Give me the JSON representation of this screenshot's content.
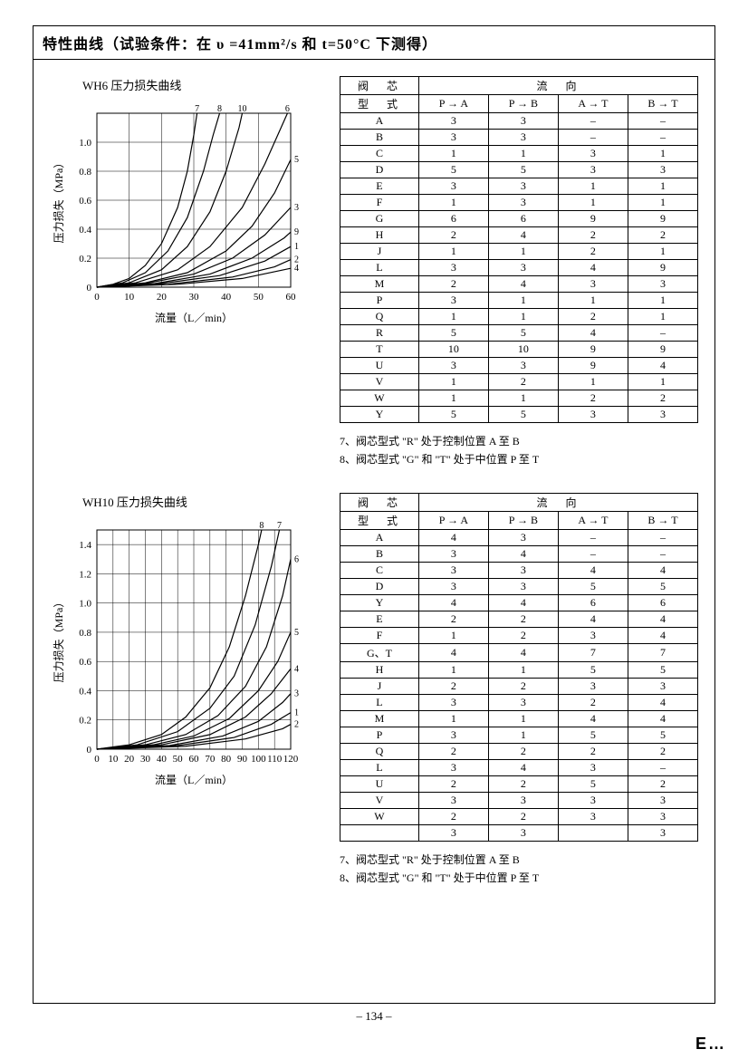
{
  "page_number": "– 134 –",
  "corner": "E…",
  "title": "特性曲线（试验条件：在 υ =41mm²/s 和 t=50°C 下测得）",
  "chart1": {
    "title": "WH6 压力损失曲线",
    "ylabel": "压力损失（MPa）",
    "xlabel": "流量（L／min）",
    "xlim": [
      0,
      60
    ],
    "xticks": [
      0,
      10,
      20,
      30,
      40,
      50,
      60
    ],
    "ylim": [
      0,
      1.2
    ],
    "yticks": [
      0,
      0.2,
      0.4,
      0.6,
      0.8,
      1.0
    ],
    "grid_color": "#000",
    "line_color": "#000",
    "line_width": 1.2,
    "end_labels": [
      "7",
      "8",
      "10",
      "6",
      "5",
      "3",
      "9",
      "1",
      "2",
      "4"
    ],
    "curves": [
      [
        [
          0,
          0
        ],
        [
          5,
          0.02
        ],
        [
          10,
          0.06
        ],
        [
          15,
          0.15
        ],
        [
          20,
          0.3
        ],
        [
          25,
          0.55
        ],
        [
          28,
          0.8
        ],
        [
          30,
          1.05
        ],
        [
          31,
          1.2
        ]
      ],
      [
        [
          0,
          0
        ],
        [
          8,
          0.03
        ],
        [
          15,
          0.1
        ],
        [
          22,
          0.25
        ],
        [
          28,
          0.48
        ],
        [
          33,
          0.8
        ],
        [
          36,
          1.05
        ],
        [
          38,
          1.2
        ]
      ],
      [
        [
          0,
          0
        ],
        [
          10,
          0.03
        ],
        [
          20,
          0.12
        ],
        [
          28,
          0.28
        ],
        [
          35,
          0.52
        ],
        [
          40,
          0.8
        ],
        [
          44,
          1.1
        ],
        [
          45,
          1.2
        ]
      ],
      [
        [
          0,
          0
        ],
        [
          12,
          0.03
        ],
        [
          25,
          0.12
        ],
        [
          35,
          0.28
        ],
        [
          45,
          0.55
        ],
        [
          52,
          0.85
        ],
        [
          58,
          1.15
        ],
        [
          59,
          1.2
        ]
      ],
      [
        [
          0,
          0
        ],
        [
          15,
          0.03
        ],
        [
          28,
          0.1
        ],
        [
          40,
          0.25
        ],
        [
          48,
          0.42
        ],
        [
          55,
          0.65
        ],
        [
          60,
          0.88
        ]
      ],
      [
        [
          0,
          0
        ],
        [
          15,
          0.025
        ],
        [
          30,
          0.09
        ],
        [
          42,
          0.2
        ],
        [
          52,
          0.36
        ],
        [
          60,
          0.55
        ]
      ],
      [
        [
          0,
          0
        ],
        [
          18,
          0.025
        ],
        [
          35,
          0.09
        ],
        [
          48,
          0.2
        ],
        [
          58,
          0.34
        ],
        [
          60,
          0.38
        ]
      ],
      [
        [
          0,
          0
        ],
        [
          20,
          0.025
        ],
        [
          38,
          0.08
        ],
        [
          52,
          0.18
        ],
        [
          60,
          0.28
        ]
      ],
      [
        [
          0,
          0
        ],
        [
          22,
          0.02
        ],
        [
          42,
          0.07
        ],
        [
          55,
          0.14
        ],
        [
          60,
          0.19
        ]
      ],
      [
        [
          0,
          0
        ],
        [
          25,
          0.02
        ],
        [
          45,
          0.06
        ],
        [
          60,
          0.13
        ]
      ]
    ]
  },
  "chart2": {
    "title": "WH10 压力损失曲线",
    "ylabel": "压力损失（MPa）",
    "xlabel": "流量（L／min）",
    "xlim": [
      0,
      120
    ],
    "xticks": [
      0,
      10,
      20,
      30,
      40,
      50,
      60,
      70,
      80,
      90,
      100,
      110,
      120
    ],
    "ylim": [
      0,
      1.5
    ],
    "yticks": [
      0,
      0.2,
      0.4,
      0.6,
      0.8,
      1.0,
      1.2,
      1.4
    ],
    "grid_color": "#000",
    "line_color": "#000",
    "line_width": 1.2,
    "end_labels": [
      "8",
      "7",
      "6",
      "5",
      "4",
      "3",
      "1",
      "2"
    ],
    "curves": [
      [
        [
          0,
          0
        ],
        [
          20,
          0.03
        ],
        [
          40,
          0.1
        ],
        [
          55,
          0.22
        ],
        [
          70,
          0.42
        ],
        [
          82,
          0.7
        ],
        [
          92,
          1.05
        ],
        [
          100,
          1.4
        ],
        [
          102,
          1.5
        ]
      ],
      [
        [
          0,
          0
        ],
        [
          25,
          0.03
        ],
        [
          50,
          0.12
        ],
        [
          70,
          0.28
        ],
        [
          85,
          0.5
        ],
        [
          98,
          0.85
        ],
        [
          108,
          1.25
        ],
        [
          113,
          1.5
        ]
      ],
      [
        [
          0,
          0
        ],
        [
          30,
          0.03
        ],
        [
          55,
          0.1
        ],
        [
          75,
          0.23
        ],
        [
          92,
          0.43
        ],
        [
          105,
          0.7
        ],
        [
          115,
          1.05
        ],
        [
          120,
          1.3
        ]
      ],
      [
        [
          0,
          0
        ],
        [
          35,
          0.03
        ],
        [
          60,
          0.09
        ],
        [
          82,
          0.21
        ],
        [
          100,
          0.4
        ],
        [
          112,
          0.6
        ],
        [
          120,
          0.8
        ]
      ],
      [
        [
          0,
          0
        ],
        [
          40,
          0.03
        ],
        [
          70,
          0.1
        ],
        [
          92,
          0.22
        ],
        [
          108,
          0.38
        ],
        [
          120,
          0.55
        ]
      ],
      [
        [
          0,
          0
        ],
        [
          45,
          0.025
        ],
        [
          78,
          0.09
        ],
        [
          100,
          0.19
        ],
        [
          115,
          0.32
        ],
        [
          120,
          0.38
        ]
      ],
      [
        [
          0,
          0
        ],
        [
          50,
          0.025
        ],
        [
          85,
          0.08
        ],
        [
          108,
          0.17
        ],
        [
          120,
          0.25
        ]
      ],
      [
        [
          0,
          0
        ],
        [
          55,
          0.02
        ],
        [
          92,
          0.07
        ],
        [
          115,
          0.14
        ],
        [
          120,
          0.17
        ]
      ]
    ]
  },
  "table1": {
    "header_main": "阀　芯",
    "header_sub": "型　式",
    "header_flow": "流　向",
    "cols": [
      "P → A",
      "P → B",
      "A → T",
      "B → T"
    ],
    "rows": [
      [
        "A",
        "3",
        "3",
        "–",
        "–"
      ],
      [
        "B",
        "3",
        "3",
        "–",
        "–"
      ],
      [
        "C",
        "1",
        "1",
        "3",
        "1"
      ],
      [
        "D",
        "5",
        "5",
        "3",
        "3"
      ],
      [
        "E",
        "3",
        "3",
        "1",
        "1"
      ],
      [
        "F",
        "1",
        "3",
        "1",
        "1"
      ],
      [
        "G",
        "6",
        "6",
        "9",
        "9"
      ],
      [
        "H",
        "2",
        "4",
        "2",
        "2"
      ],
      [
        "J",
        "1",
        "1",
        "2",
        "1"
      ],
      [
        "L",
        "3",
        "3",
        "4",
        "9"
      ],
      [
        "M",
        "2",
        "4",
        "3",
        "3"
      ],
      [
        "P",
        "3",
        "1",
        "1",
        "1"
      ],
      [
        "Q",
        "1",
        "1",
        "2",
        "1"
      ],
      [
        "R",
        "5",
        "5",
        "4",
        "–"
      ],
      [
        "T",
        "10",
        "10",
        "9",
        "9"
      ],
      [
        "U",
        "3",
        "3",
        "9",
        "4"
      ],
      [
        "V",
        "1",
        "2",
        "1",
        "1"
      ],
      [
        "W",
        "1",
        "1",
        "2",
        "2"
      ],
      [
        "Y",
        "5",
        "5",
        "3",
        "3"
      ]
    ]
  },
  "table2": {
    "header_main": "阀　芯",
    "header_sub": "型　式",
    "header_flow": "流　向",
    "cols": [
      "P → A",
      "P → B",
      "A → T",
      "B → T"
    ],
    "rows": [
      [
        "A",
        "4",
        "3",
        "–",
        "–"
      ],
      [
        "B",
        "3",
        "4",
        "–",
        "–"
      ],
      [
        "C",
        "3",
        "3",
        "4",
        "4"
      ],
      [
        "D",
        "3",
        "3",
        "5",
        "5"
      ],
      [
        "Y",
        "4",
        "4",
        "6",
        "6"
      ],
      [
        "E",
        "2",
        "2",
        "4",
        "4"
      ],
      [
        "F",
        "1",
        "2",
        "3",
        "4"
      ],
      [
        "G、T",
        "4",
        "4",
        "7",
        "7"
      ],
      [
        "H",
        "1",
        "1",
        "5",
        "5"
      ],
      [
        "J",
        "2",
        "2",
        "3",
        "3"
      ],
      [
        "L",
        "3",
        "3",
        "2",
        "4"
      ],
      [
        "M",
        "1",
        "1",
        "4",
        "4"
      ],
      [
        "P",
        "3",
        "1",
        "5",
        "5"
      ],
      [
        "Q",
        "2",
        "2",
        "2",
        "2"
      ],
      [
        "L",
        "3",
        "4",
        "3",
        "–"
      ],
      [
        "U",
        "2",
        "2",
        "5",
        "2"
      ],
      [
        "V",
        "3",
        "3",
        "3",
        "3"
      ],
      [
        "W",
        "2",
        "2",
        "3",
        "3"
      ],
      [
        "",
        "3",
        "3",
        "",
        "3"
      ]
    ]
  },
  "notes1": [
    "7、阀芯型式 \"R\" 处于控制位置 A 至 B",
    "8、阀芯型式 \"G\" 和 \"T\" 处于中位置 P 至 T"
  ],
  "notes2": [
    "7、阀芯型式 \"R\" 处于控制位置 A 至 B",
    "8、阀芯型式 \"G\" 和 \"T\" 处于中位置 P 至 T"
  ]
}
